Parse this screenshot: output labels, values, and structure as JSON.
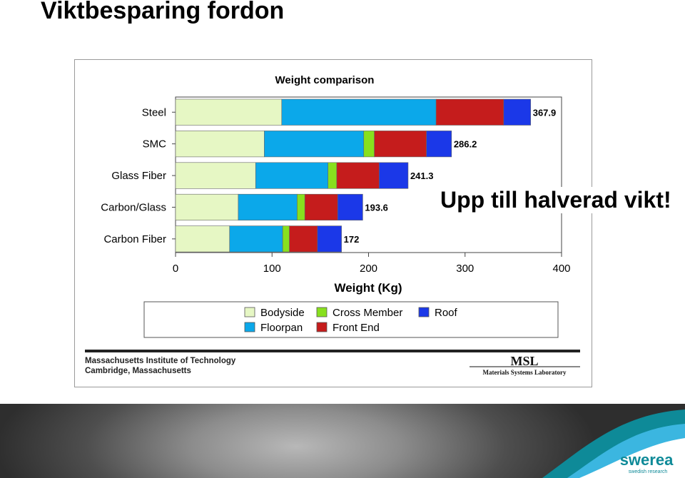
{
  "slide": {
    "title": "Viktbesparing fordon",
    "slogan": "Upp till halverad vikt!"
  },
  "chart_data": {
    "type": "bar",
    "stacked": true,
    "orientation": "horizontal",
    "title": "Weight comparison",
    "xlabel": "Weight (Kg)",
    "ylabel": "",
    "xlim": [
      0,
      400
    ],
    "xticks": [
      0,
      100,
      200,
      300,
      400
    ],
    "categories": [
      "Steel",
      "SMC",
      "Glass Fiber",
      "Carbon/Glass",
      "Carbon Fiber"
    ],
    "series": [
      {
        "name": "Bodyside",
        "color": "#e6f7c4",
        "values": [
          110,
          92,
          83,
          65,
          56
        ]
      },
      {
        "name": "Floorpan",
        "color": "#0ba8ea",
        "values": [
          160,
          103,
          75,
          61,
          55
        ]
      },
      {
        "name": "Cross Member",
        "color": "#88e01e",
        "values": [
          0,
          11,
          9,
          8,
          7
        ]
      },
      {
        "name": "Front End",
        "color": "#c51c1c",
        "values": [
          70,
          54,
          44,
          34,
          29
        ]
      },
      {
        "name": "Roof",
        "color": "#1b38e8",
        "values": [
          28,
          26,
          30,
          26,
          25
        ]
      }
    ],
    "totals": [
      367.9,
      286.2,
      241.3,
      193.6,
      172
    ],
    "total_labels": [
      "367.9",
      "286.2",
      "241.3",
      "193.6",
      "172"
    ],
    "legend_position": "bottom",
    "grid": false
  },
  "credits": {
    "line1": "Massachusetts Institute of Technology",
    "line2": "Cambridge, Massachusetts",
    "lab_logo": "MSL",
    "lab_name": "Materials Systems Laboratory"
  },
  "brand": {
    "name": "swerea",
    "tagline": "swedish research",
    "colors": {
      "teal": "#0e8a98",
      "sky": "#2aa9d8",
      "band_dark": "#2e2e2e"
    }
  }
}
